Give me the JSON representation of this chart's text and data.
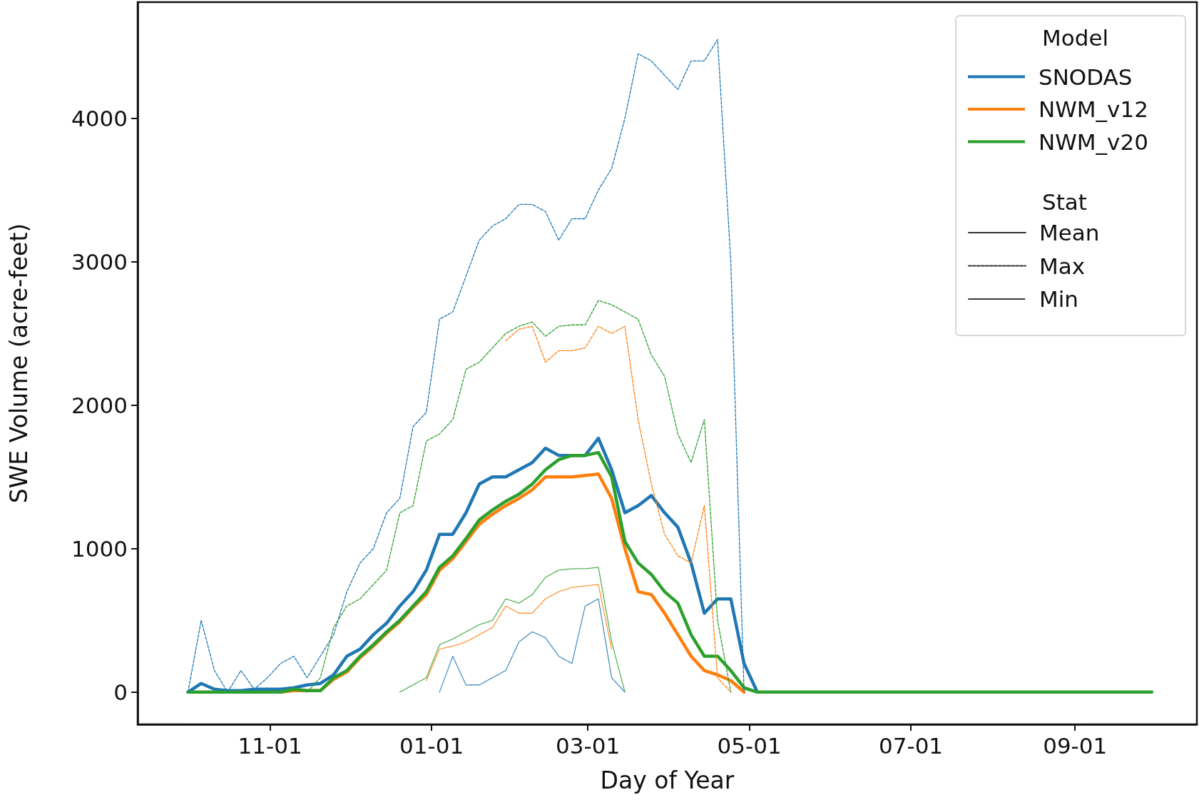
{
  "chart_data": {
    "type": "line",
    "xlabel": "Day of Year",
    "ylabel": "SWE Volume (acre-feet)",
    "legend_title": "Model",
    "annotations": [
      "Stat"
    ],
    "legend": "top right",
    "grid": false,
    "x": [
      "2000-10-01",
      "2000-10-06",
      "2000-10-11",
      "2000-10-16",
      "2000-10-21",
      "2000-10-26",
      "2000-10-31",
      "2000-11-05",
      "2000-11-10",
      "2000-11-15",
      "2000-11-20",
      "2000-11-25",
      "2000-11-30",
      "2000-12-05",
      "2000-12-10",
      "2000-12-15",
      "2000-12-20",
      "2000-12-25",
      "2000-12-30",
      "2001-01-04",
      "2001-01-09",
      "2001-01-14",
      "2001-01-19",
      "2001-01-24",
      "2001-01-29",
      "2001-02-03",
      "2001-02-08",
      "2001-02-13",
      "2001-02-18",
      "2001-02-23",
      "2001-02-28",
      "2001-03-05",
      "2001-03-10",
      "2001-03-15",
      "2001-03-20",
      "2001-03-25",
      "2001-03-30",
      "2001-04-04",
      "2001-04-09",
      "2001-04-14",
      "2001-04-19",
      "2001-04-24",
      "2001-04-29",
      "2001-05-04",
      "2001-09-30"
    ],
    "xlim": [
      "2000-09-12",
      "2001-10-17"
    ],
    "xticks": [
      {
        "value": "2000-11-01",
        "label": "11-01"
      },
      {
        "value": "2001-01-01",
        "label": "01-01"
      },
      {
        "value": "2001-03-01",
        "label": "03-01"
      },
      {
        "value": "2001-05-01",
        "label": "05-01"
      },
      {
        "value": "2001-07-01",
        "label": "07-01"
      },
      {
        "value": "2001-09-01",
        "label": "09-01"
      }
    ],
    "ylim": [
      -225,
      4810
    ],
    "yticks": [
      0,
      1000,
      2000,
      3000,
      4000
    ],
    "series": [
      {
        "name": "SNODAS",
        "color": "#1f77b4",
        "line_style": "solid",
        "values": [
          0,
          60,
          20,
          10,
          10,
          20,
          20,
          20,
          30,
          50,
          60,
          120,
          250,
          300,
          400,
          480,
          600,
          700,
          850,
          1100,
          1100,
          1250,
          1450,
          1500,
          1500,
          1550,
          1600,
          1700,
          1650,
          1650,
          1650,
          1770,
          1550,
          1250,
          1300,
          1370,
          1250,
          1150,
          900,
          550,
          650,
          650,
          200,
          0,
          null
        ]
      },
      {
        "name": "NWM_v12",
        "color": "#ff7f0e",
        "line_style": "solid",
        "values": [
          null,
          null,
          null,
          null,
          null,
          null,
          null,
          0,
          10,
          10,
          10,
          90,
          140,
          240,
          320,
          410,
          490,
          590,
          680,
          850,
          930,
          1050,
          1170,
          1240,
          1300,
          1350,
          1410,
          1500,
          1500,
          1500,
          1510,
          1520,
          1350,
          1000,
          700,
          680,
          550,
          400,
          250,
          150,
          120,
          80,
          0,
          null,
          null
        ]
      },
      {
        "name": "NWM_v20",
        "color": "#2ca02c",
        "line_style": "solid",
        "values": [
          0,
          0,
          0,
          0,
          0,
          0,
          0,
          0,
          20,
          10,
          10,
          100,
          150,
          250,
          330,
          420,
          500,
          600,
          700,
          870,
          950,
          1070,
          1200,
          1270,
          1330,
          1380,
          1450,
          1550,
          1620,
          1650,
          1650,
          1670,
          1500,
          1050,
          900,
          820,
          700,
          620,
          400,
          250,
          250,
          150,
          30,
          0,
          0
        ]
      },
      {
        "color": "#1f77b4",
        "line_style": "dashed",
        "values": [
          0,
          500,
          150,
          0,
          150,
          20,
          100,
          200,
          250,
          100,
          250,
          400,
          700,
          900,
          1000,
          1250,
          1350,
          1850,
          1950,
          2600,
          2650,
          2900,
          3150,
          3250,
          3300,
          3400,
          3400,
          3350,
          3150,
          3300,
          3300,
          3500,
          3650,
          4000,
          4450,
          4400,
          4300,
          4200,
          4400,
          4400,
          4550,
          3000,
          0,
          null,
          null
        ]
      },
      {
        "color": "#ff7f0e",
        "line_style": "dashed",
        "values": [
          null,
          null,
          null,
          null,
          null,
          null,
          null,
          null,
          null,
          null,
          null,
          null,
          null,
          null,
          null,
          null,
          null,
          null,
          null,
          null,
          null,
          null,
          null,
          null,
          2450,
          2530,
          2550,
          2300,
          2380,
          2380,
          2400,
          2550,
          2500,
          2550,
          1900,
          1450,
          1100,
          950,
          900,
          1300,
          100,
          0,
          null,
          null,
          null
        ]
      },
      {
        "color": "#2ca02c",
        "line_style": "dashed",
        "values": [
          null,
          null,
          null,
          null,
          null,
          null,
          null,
          null,
          null,
          0,
          100,
          450,
          600,
          650,
          750,
          850,
          1250,
          1300,
          1750,
          1800,
          1900,
          2250,
          2300,
          2400,
          2500,
          2550,
          2580,
          2480,
          2550,
          2560,
          2560,
          2730,
          2700,
          2650,
          2600,
          2350,
          2200,
          1800,
          1600,
          1900,
          500,
          0,
          null,
          null,
          null
        ]
      },
      {
        "color": "#1f77b4",
        "line_style": "dotted",
        "values": [
          null,
          null,
          null,
          null,
          null,
          null,
          null,
          null,
          null,
          null,
          null,
          null,
          null,
          null,
          null,
          null,
          null,
          null,
          null,
          0,
          250,
          50,
          50,
          100,
          150,
          350,
          420,
          380,
          250,
          200,
          600,
          650,
          100,
          0,
          null,
          null,
          null,
          null,
          null,
          null,
          null,
          null,
          null,
          null,
          null
        ]
      },
      {
        "color": "#ff7f0e",
        "line_style": "dotted",
        "values": [
          null,
          null,
          null,
          null,
          null,
          null,
          null,
          null,
          null,
          null,
          null,
          null,
          null,
          null,
          null,
          null,
          null,
          null,
          80,
          300,
          320,
          350,
          400,
          450,
          600,
          550,
          550,
          650,
          700,
          730,
          740,
          750,
          300,
          null,
          null,
          null,
          null,
          null,
          null,
          null,
          null,
          null,
          null,
          null,
          null
        ]
      },
      {
        "color": "#2ca02c",
        "line_style": "dotted",
        "values": [
          null,
          null,
          null,
          null,
          null,
          null,
          null,
          null,
          null,
          null,
          null,
          null,
          null,
          null,
          null,
          null,
          0,
          50,
          100,
          330,
          370,
          420,
          470,
          500,
          650,
          620,
          680,
          800,
          850,
          860,
          860,
          870,
          350,
          0,
          null,
          null,
          null,
          null,
          null,
          null,
          null,
          null,
          null,
          null,
          null
        ]
      },
      {
        "name": "Mean",
        "color": "#333333",
        "line_style": "solid",
        "values": [
          null,
          null,
          null,
          null,
          null,
          null,
          null,
          null,
          null,
          null,
          null,
          null,
          null,
          null,
          null,
          null,
          null,
          null,
          null,
          null,
          null,
          null,
          null,
          null,
          null,
          null,
          null,
          null,
          null,
          null,
          null,
          null,
          null,
          null,
          null,
          null,
          null,
          null,
          null,
          null,
          null,
          null,
          null,
          null,
          null
        ]
      },
      {
        "name": "Max",
        "color": "#333333",
        "line_style": "dashed",
        "values": [
          null,
          null,
          null,
          null,
          null,
          null,
          null,
          null,
          null,
          null,
          null,
          null,
          null,
          null,
          null,
          null,
          null,
          null,
          null,
          null,
          null,
          null,
          null,
          null,
          null,
          null,
          null,
          null,
          null,
          null,
          null,
          null,
          null,
          null,
          null,
          null,
          null,
          null,
          null,
          null,
          null,
          null,
          null,
          null,
          null
        ]
      },
      {
        "name": "Min",
        "color": "#333333",
        "line_style": "dotted",
        "values": [
          null,
          null,
          null,
          null,
          null,
          null,
          null,
          null,
          null,
          null,
          null,
          null,
          null,
          null,
          null,
          null,
          null,
          null,
          null,
          null,
          null,
          null,
          null,
          null,
          null,
          null,
          null,
          null,
          null,
          null,
          null,
          null,
          null,
          null,
          null,
          null,
          null,
          null,
          null,
          null,
          null,
          null,
          null,
          null,
          null
        ]
      }
    ]
  }
}
